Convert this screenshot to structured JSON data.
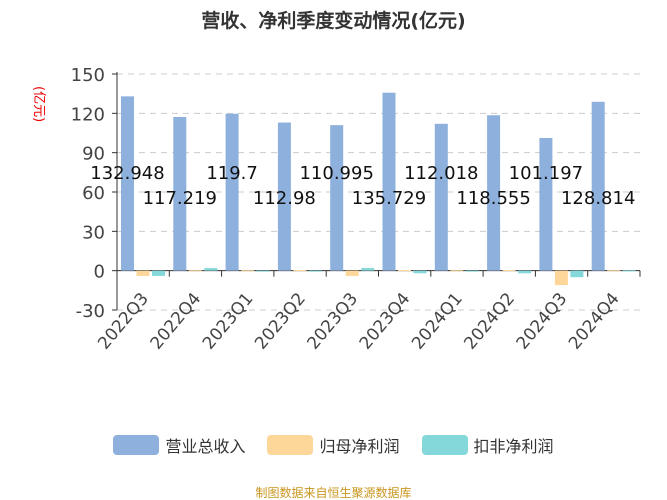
{
  "chart_data": {
    "type": "bar",
    "title": "营收、净利季度变动情况(亿元)",
    "ylabel": "(亿元)",
    "ylim": [
      -30,
      150
    ],
    "yticks": [
      -30,
      0,
      30,
      60,
      90,
      120,
      150
    ],
    "grid": true,
    "legend_position": "bottom",
    "categories": [
      "2022Q3",
      "2022Q4",
      "2023Q1",
      "2023Q2",
      "2023Q3",
      "2023Q4",
      "2024Q1",
      "2024Q2",
      "2024Q3",
      "2024Q4"
    ],
    "series": [
      {
        "name": "营业总收入",
        "color": "#8eb0dd",
        "values": [
          132.948,
          117.219,
          119.7,
          112.98,
          110.995,
          135.729,
          112.018,
          118.555,
          101.197,
          128.814
        ],
        "labels": [
          "132.948",
          "117.219",
          "119.7",
          "112.98",
          "110.995",
          "135.729",
          "112.018",
          "118.555",
          "101.197",
          "128.814"
        ]
      },
      {
        "name": "归母净利润",
        "color": "#fdd79a",
        "values": [
          -4,
          0.3,
          0.3,
          0.5,
          -4,
          0.5,
          0.3,
          0.5,
          -11,
          0.3
        ]
      },
      {
        "name": "扣非净利润",
        "color": "#84d8d9",
        "values": [
          -4,
          2,
          -0.3,
          -0.5,
          2,
          -2,
          -0.3,
          -2,
          -5,
          0.2
        ]
      }
    ]
  },
  "footer": "制图数据来自恒生聚源数据库"
}
